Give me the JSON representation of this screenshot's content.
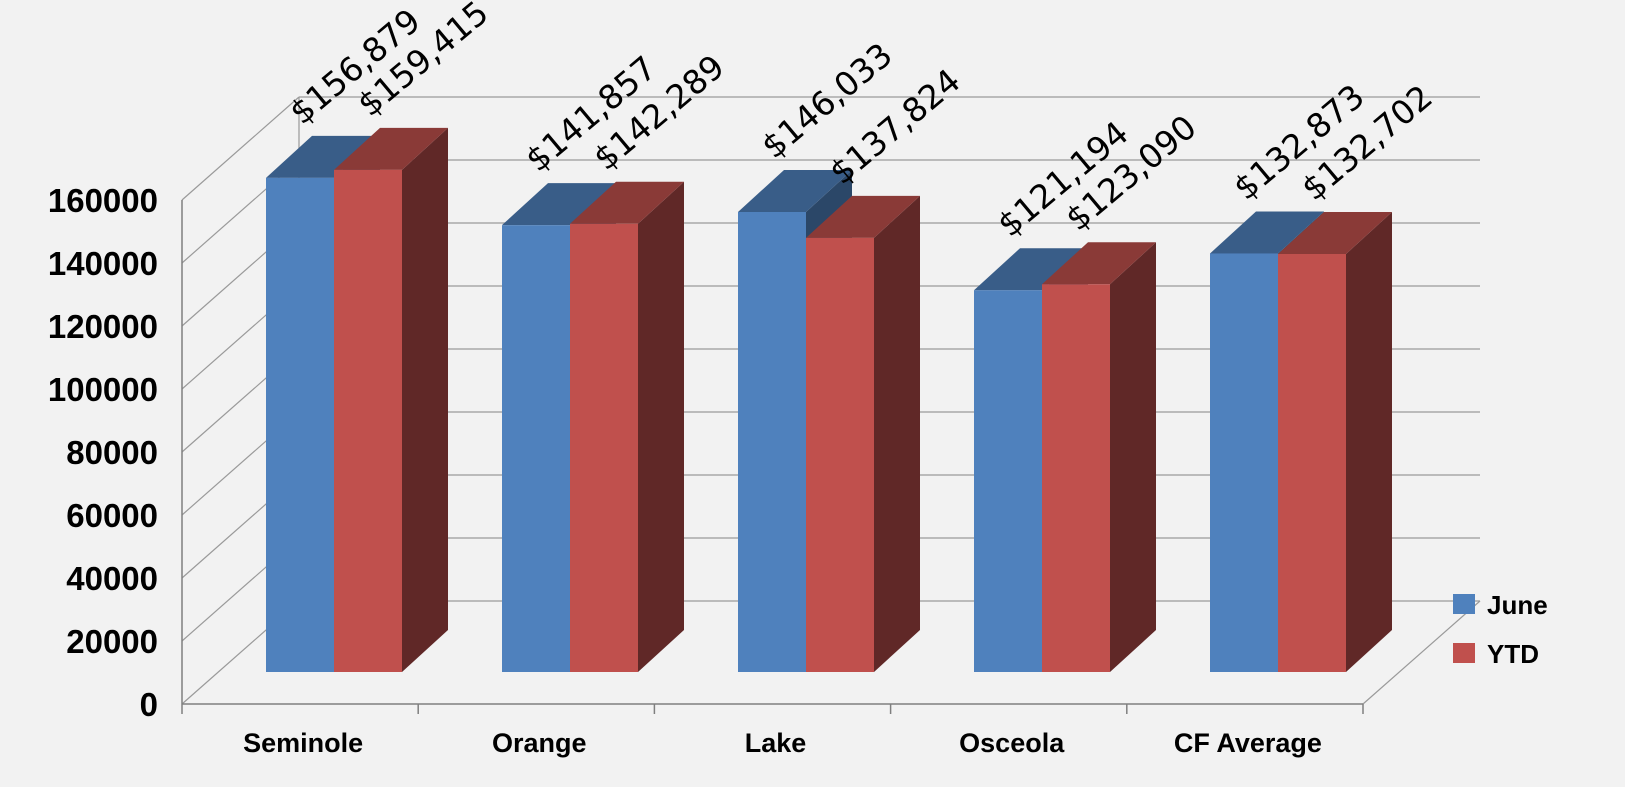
{
  "chart_data": {
    "type": "bar",
    "categories": [
      "Seminole",
      "Orange",
      "Lake",
      "Osceola",
      "CF Average"
    ],
    "series": [
      {
        "name": "June",
        "values": [
          156879,
          141857,
          146033,
          121194,
          132873
        ],
        "color": "#4f81bd",
        "labels": [
          "$156,879",
          "$141,857",
          "$146,033",
          "$121,194",
          "$132,873"
        ]
      },
      {
        "name": "YTD",
        "values": [
          159415,
          142289,
          137824,
          123090,
          132702
        ],
        "color": "#c0504d",
        "labels": [
          "$159,415",
          "$142,289",
          "$137,824",
          "$123,090",
          "$132,702"
        ]
      }
    ],
    "yticks": [
      "0",
      "20000",
      "40000",
      "60000",
      "80000",
      "100000",
      "120000",
      "140000",
      "160000"
    ],
    "ylim": [
      0,
      160000
    ],
    "grid": true,
    "legend_position": "right",
    "style": "3d-clustered-column"
  }
}
